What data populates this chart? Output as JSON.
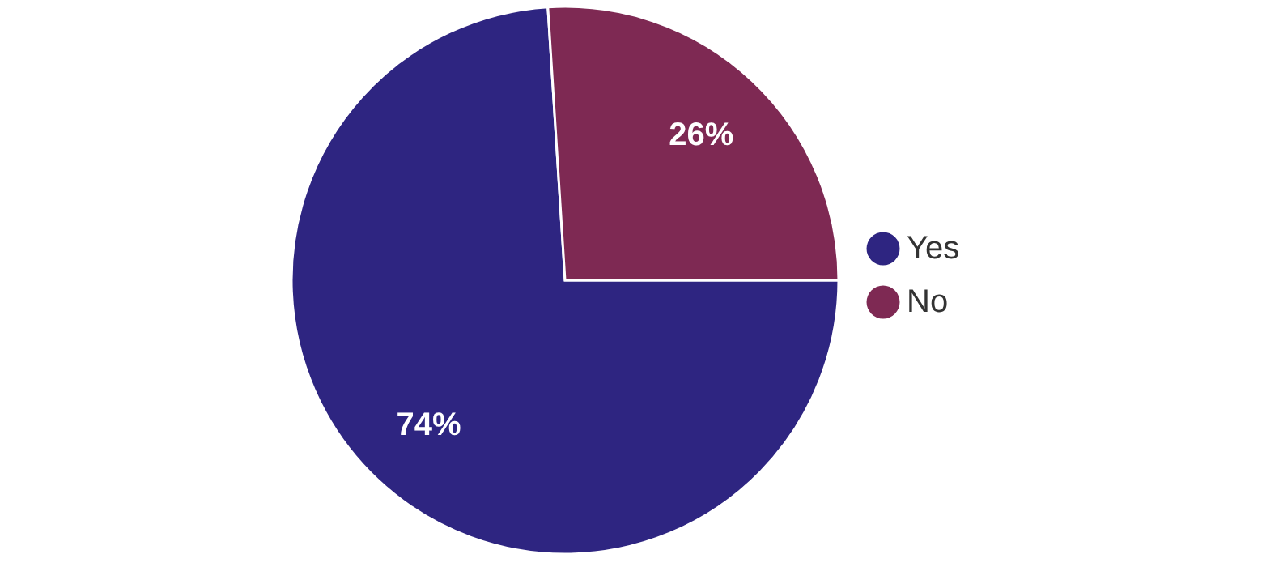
{
  "chart_data": {
    "type": "pie",
    "categories": [
      "Yes",
      "No"
    ],
    "values": [
      74,
      26
    ],
    "colors": [
      "#2e2581",
      "#7e2953"
    ],
    "value_labels": [
      "74%",
      "26%"
    ],
    "legend": "right"
  }
}
